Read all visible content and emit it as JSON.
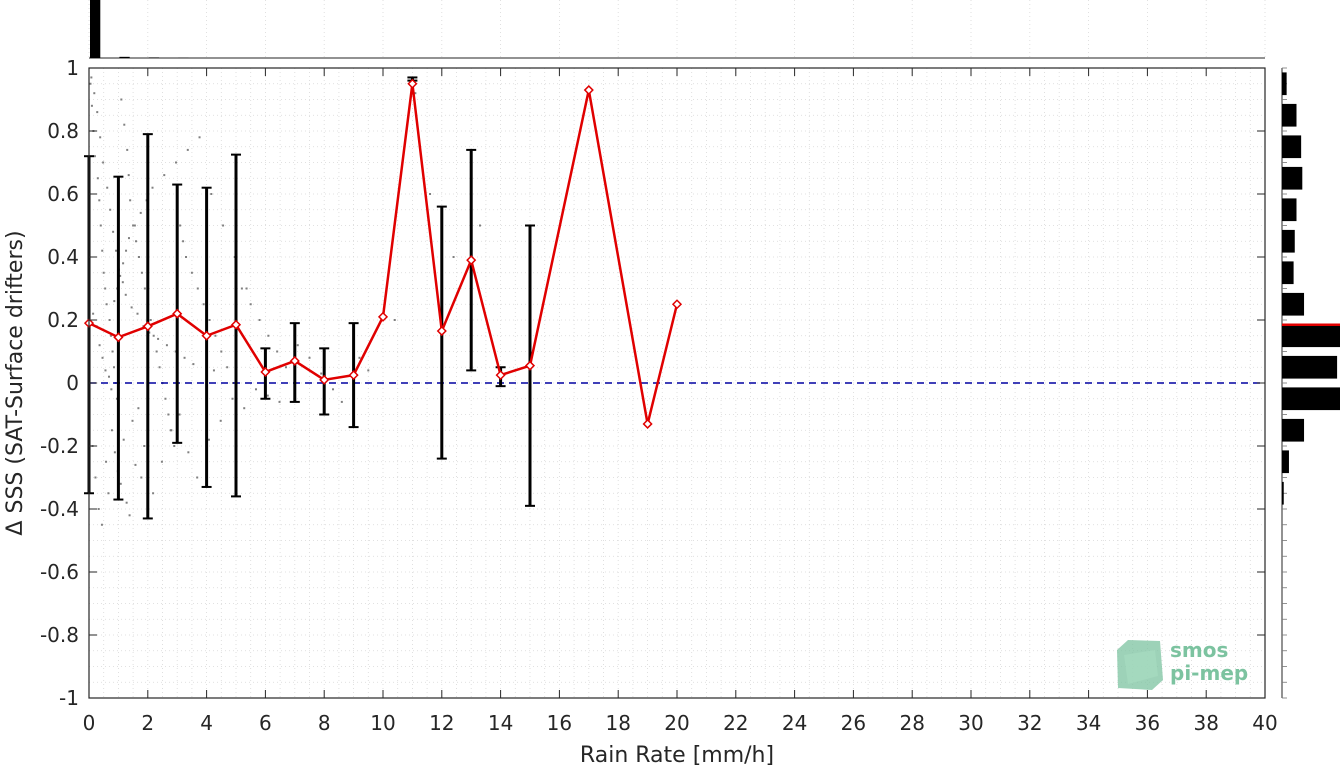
{
  "chart_data": {
    "type": "scatter",
    "xlabel": "Rain Rate [mm/h]",
    "ylabel": "Δ SSS (SAT-Surface drifters)",
    "xlim": [
      0,
      40
    ],
    "ylim": [
      -1,
      1
    ],
    "x_ticks": [
      "0",
      "2",
      "4",
      "6",
      "8",
      "10",
      "12",
      "14",
      "16",
      "18",
      "20",
      "22",
      "24",
      "26",
      "28",
      "30",
      "32",
      "34",
      "36",
      "38",
      "40"
    ],
    "y_ticks": [
      "1",
      "0.8",
      "0.6",
      "0.4",
      "0.2",
      "0",
      "-0.2",
      "-0.4",
      "-0.6",
      "-0.8",
      "-1"
    ],
    "grid": true,
    "reference_line": {
      "y": 0,
      "style": "dashed",
      "color": "#0000a0"
    },
    "series": [
      {
        "style": "line-diamond",
        "color": "#e00000",
        "x": [
          0,
          1,
          2,
          3,
          4,
          5,
          6,
          7,
          8,
          9,
          10,
          11,
          12,
          13,
          14,
          15,
          17,
          19,
          20
        ],
        "y": [
          0.19,
          0.145,
          0.18,
          0.22,
          0.15,
          0.185,
          0.035,
          0.07,
          0.01,
          0.025,
          0.21,
          0.95,
          0.165,
          0.39,
          0.025,
          0.055,
          0.93,
          -0.13,
          0.25
        ],
        "err_low": [
          -0.35,
          -0.37,
          -0.43,
          -0.19,
          -0.33,
          -0.36,
          -0.05,
          -0.06,
          -0.1,
          -0.14,
          null,
          0.96,
          -0.24,
          0.04,
          -0.01,
          -0.39,
          null,
          null,
          null
        ],
        "err_high": [
          0.72,
          0.655,
          0.79,
          0.63,
          0.62,
          0.725,
          0.11,
          0.19,
          0.11,
          0.19,
          null,
          0.97,
          0.56,
          0.74,
          0.05,
          0.5,
          null,
          null,
          null
        ]
      }
    ],
    "scatter_points": {
      "color": "#808080",
      "x": [
        0.05,
        0.1,
        0.15,
        0.2,
        0.3,
        0.35,
        0.4,
        0.45,
        0.5,
        0.55,
        0.6,
        0.7,
        0.75,
        0.8,
        0.85,
        0.9,
        0.95,
        1.0,
        1.1,
        1.2,
        1.3,
        1.35,
        1.4,
        1.5,
        1.6,
        1.7,
        1.8,
        1.9,
        2.0,
        2.1,
        2.2,
        2.3,
        2.4,
        2.5,
        2.6,
        2.7,
        2.8,
        2.9,
        3.0,
        3.1,
        3.2,
        3.3,
        3.5,
        3.7,
        3.9,
        4.1,
        4.3,
        4.5,
        4.7,
        4.9,
        5.2,
        5.5,
        5.8,
        6.1,
        6.4,
        6.7,
        7.1,
        7.5,
        7.9,
        8.3,
        8.6,
        9.2,
        9.5,
        10.4,
        0.12,
        0.22,
        0.33,
        0.44,
        0.58,
        0.66,
        0.78,
        0.88,
        0.98,
        1.08,
        1.18,
        1.28,
        1.38,
        1.48,
        1.58,
        1.68,
        1.78,
        1.88,
        2.18,
        2.48,
        2.78,
        3.08,
        3.38,
        3.68,
        4.08,
        4.48,
        4.88,
        5.28,
        5.68,
        6.08,
        6.48,
        0.08,
        0.18,
        0.28,
        0.38,
        0.48,
        0.62,
        0.72,
        0.82,
        0.92,
        1.02,
        1.15,
        1.25,
        1.45,
        1.65,
        1.85,
        2.05,
        2.35,
        2.65,
        2.95,
        3.25,
        3.55,
        4.25,
        11.1,
        11.6,
        12.4,
        13.3,
        0.14,
        0.26,
        0.36,
        0.46,
        0.56,
        0.68,
        0.76,
        0.86,
        0.96,
        1.06,
        1.16,
        1.26,
        1.36,
        1.56,
        1.76,
        1.96,
        2.16,
        2.56,
        2.96,
        3.36,
        3.76,
        4.16,
        4.56,
        4.96,
        5.36
      ],
      "y": [
        0.95,
        0.88,
        0.8,
        0.72,
        0.65,
        0.58,
        0.5,
        0.42,
        0.35,
        0.3,
        0.25,
        0.2,
        0.15,
        0.1,
        0.05,
        0.0,
        -0.05,
        -0.1,
        0.9,
        0.82,
        0.74,
        0.66,
        0.58,
        0.5,
        0.45,
        0.4,
        0.35,
        0.3,
        0.25,
        0.2,
        0.15,
        0.1,
        0.05,
        0.0,
        -0.05,
        -0.1,
        -0.15,
        -0.2,
        0.6,
        0.5,
        0.45,
        0.4,
        0.35,
        0.3,
        0.25,
        0.2,
        0.15,
        0.1,
        0.05,
        0.0,
        0.3,
        0.25,
        0.2,
        0.15,
        0.1,
        0.05,
        0.12,
        0.08,
        0.03,
        -0.02,
        -0.06,
        0.08,
        0.04,
        0.2,
        -0.2,
        -0.3,
        -0.4,
        -0.45,
        -0.25,
        -0.35,
        -0.15,
        -0.22,
        -0.28,
        -0.32,
        -0.18,
        -0.38,
        -0.42,
        -0.12,
        -0.26,
        -0.08,
        -0.3,
        -0.2,
        -0.35,
        -0.25,
        -0.15,
        -0.1,
        -0.22,
        -0.3,
        -0.18,
        -0.12,
        -0.05,
        -0.08,
        -0.02,
        -0.04,
        -0.06,
        0.97,
        0.92,
        0.86,
        0.78,
        0.7,
        0.62,
        0.55,
        0.48,
        0.42,
        0.36,
        0.32,
        0.28,
        0.24,
        0.22,
        0.18,
        0.16,
        0.14,
        0.12,
        0.1,
        0.08,
        0.06,
        0.04,
        0.92,
        0.6,
        0.4,
        0.5,
        0.22,
        0.18,
        0.12,
        0.08,
        0.04,
        0.02,
        -0.02,
        0.26,
        0.3,
        0.34,
        0.38,
        0.42,
        0.46,
        0.5,
        0.54,
        0.58,
        0.62,
        0.66,
        0.7,
        0.74,
        0.78,
        0.6,
        0.5,
        0.4,
        0.3
      ]
    },
    "top_histogram": {
      "counts": [
        1.0,
        0.02,
        0.01,
        0.005,
        0.0
      ]
    },
    "right_histogram": {
      "bin_centers": [
        0.95,
        0.85,
        0.75,
        0.65,
        0.55,
        0.45,
        0.35,
        0.25,
        0.15,
        0.05,
        -0.05,
        -0.15,
        -0.25,
        -0.35
      ],
      "counts": [
        0.08,
        0.25,
        0.33,
        0.35,
        0.25,
        0.22,
        0.2,
        0.38,
        1.0,
        0.95,
        1.0,
        0.38,
        0.12,
        0.03
      ],
      "mean_line_y": 0.185,
      "mean_color": "#e00000"
    },
    "watermark": {
      "line1": "smos",
      "line2": "pi-mep"
    }
  }
}
